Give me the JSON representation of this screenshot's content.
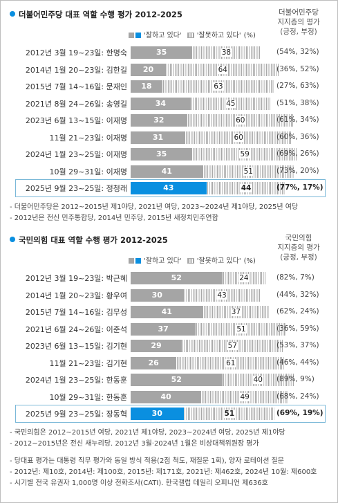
{
  "footnotes": [
    "- 당대표 평가는 대통령 직무 평가와 동일 방식 적용(2점 척도, 재질문 1회), 양자 로테이션 질문",
    "- 2012년: 제10호, 2014년: 제100호, 2015년: 제171호, 2021년: 제462호, 2024년 10월: 제600호",
    "- 시기별 전국 유권자 1,000명 이상 전화조사(CATI). 한국갤럽 데일리 오피니언 제636호"
  ],
  "colors": {
    "positive": "#a5a5a5",
    "highlight": "#0a8fe0",
    "accent_dot": "#0a8fe0"
  },
  "chart_data": [
    {
      "type": "bar",
      "title": "더불어민주당 대표 역할 수행 평가 2012-2025",
      "support_header": [
        "더불어민주당",
        "지지층의 평가",
        "(긍정, 부정)"
      ],
      "legend": {
        "positive": "'잘하고 있다'",
        "negative": "'잘못하고 있다'",
        "unit": "(%)"
      },
      "categories": [
        "2012년 3월 19~23일: 한명숙",
        "2014년 1월 20~23일: 김한길",
        "2015년 7월 14~16일: 문재인",
        "2021년 8월 24~26일: 송영길",
        "2023년 6월 13~15일: 이재명",
        "11월 21~23일: 이재명",
        "2024년 1월 23~25일: 이재명",
        "10월 29~31일: 이재명",
        "2025년 9월 23~25일: 정청래"
      ],
      "series": [
        {
          "name": "'잘하고 있다'",
          "values": [
            35,
            20,
            18,
            34,
            32,
            31,
            35,
            41,
            43
          ]
        },
        {
          "name": "'잘못하고 있다'",
          "values": [
            38,
            64,
            63,
            45,
            60,
            60,
            59,
            51,
            44
          ]
        }
      ],
      "supporter_eval": [
        "(54%, 32%)",
        "(36%, 52%)",
        "(27%, 63%)",
        "(51%, 38%)",
        "(61%, 34%)",
        "(60%, 36%)",
        "(69%, 26%)",
        "(73%, 20%)",
        "(77%, 17%)"
      ],
      "highlight_index": 8,
      "xlim": [
        0,
        100
      ],
      "notes": [
        "- 더불어민주당은 2012~2015년 제1야당, 2021년 여당, 2023~2024년 제1야당, 2025년 여당",
        "- 2012년은 전신 민주통합당, 2014년 민주당, 2015년 새정치민주연합"
      ]
    },
    {
      "type": "bar",
      "title": "국민의힘 대표 역할 수행 평가 2012-2025",
      "support_header": [
        "국민의힘",
        "지지층의 평가",
        "(긍정, 부정)"
      ],
      "legend": {
        "positive": "'잘하고 있다'",
        "negative": "'잘못하고 있다'",
        "unit": "(%)"
      },
      "categories": [
        "2012년 3월 19~23일: 박근혜",
        "2014년 1월 20~23일: 황우여",
        "2015년 7월 14~16일: 김무성",
        "2021년 6월 24~26일: 이준석",
        "2023년 6월 13~15일: 김기현",
        "11월 21~23일: 김기현",
        "2024년 1월 23~25일: 한동훈",
        "10월 29~31일: 한동훈",
        "2025년 9월 23~25일: 장동혁"
      ],
      "series": [
        {
          "name": "'잘하고 있다'",
          "values": [
            52,
            30,
            41,
            37,
            29,
            26,
            52,
            40,
            30
          ]
        },
        {
          "name": "'잘못하고 있다'",
          "values": [
            24,
            43,
            37,
            51,
            57,
            61,
            40,
            49,
            51
          ]
        }
      ],
      "supporter_eval": [
        "(82%, 7%)",
        "(44%, 32%)",
        "(62%, 24%)",
        "(36%, 59%)",
        "(53%, 37%)",
        "(46%, 44%)",
        "(89%, 9%)",
        "(68%, 24%)",
        "(69%, 19%)"
      ],
      "highlight_index": 8,
      "xlim": [
        0,
        100
      ],
      "notes": [
        "- 국민의힘은 2012~2015년 여당, 2021년 제1야당, 2023~2024년 여당, 2025년 제1야당",
        "- 2012~2015년은 전신 새누리당. 2012년 3월·2024년 1월은 비상대책위원장 평가"
      ]
    }
  ]
}
